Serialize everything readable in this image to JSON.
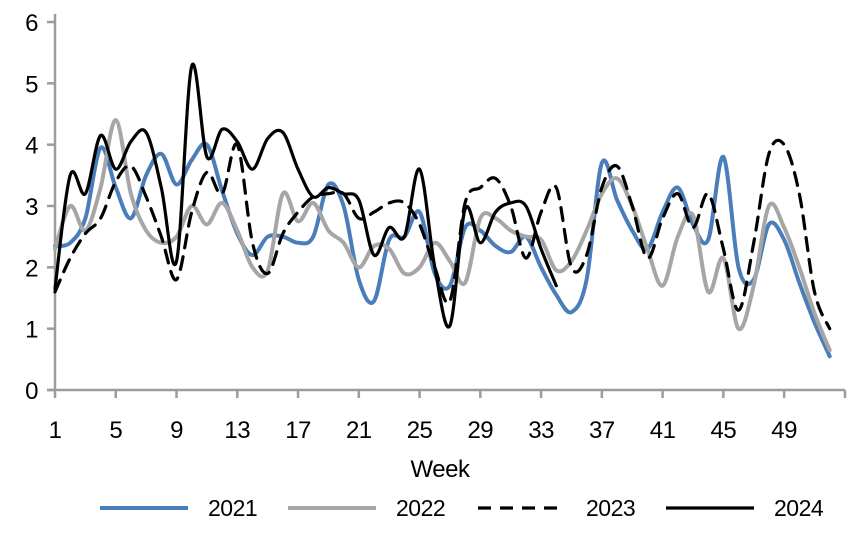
{
  "chart_data": {
    "type": "line",
    "title": "",
    "xlabel": "Week",
    "ylabel": "",
    "x_range": [
      1,
      52
    ],
    "ylim": [
      0,
      6
    ],
    "y_ticks": [
      0,
      1,
      2,
      3,
      4,
      5,
      6
    ],
    "x_tick_labels": [
      1,
      5,
      9,
      13,
      17,
      21,
      25,
      29,
      33,
      37,
      41,
      45,
      49
    ],
    "grid": false,
    "legend_position": "bottom",
    "axis_color": "#9c9c9c",
    "line_smoothing": true,
    "series": [
      {
        "name": "2021",
        "color": "#4a7ebb",
        "line_style": "solid",
        "weeks_start": 1,
        "values": [
          2.35,
          2.4,
          2.8,
          3.95,
          3.3,
          2.8,
          3.5,
          3.85,
          3.35,
          3.75,
          4.0,
          3.25,
          2.55,
          2.2,
          2.5,
          2.5,
          2.4,
          2.5,
          3.35,
          3.0,
          1.8,
          1.45,
          2.45,
          2.5,
          2.9,
          1.9,
          1.7,
          2.65,
          2.6,
          2.35,
          2.25,
          2.5,
          2.0,
          1.55,
          1.27,
          1.8,
          3.7,
          3.1,
          2.6,
          2.3,
          2.9,
          3.3,
          2.7,
          2.45,
          3.8,
          2.0,
          1.8,
          2.7,
          2.45,
          1.75,
          1.1,
          0.55
        ]
      },
      {
        "name": "2022",
        "color": "#a6a6a6",
        "line_style": "solid",
        "weeks_start": 1,
        "values": [
          2.3,
          3.0,
          2.6,
          3.3,
          4.4,
          3.2,
          2.6,
          2.4,
          2.5,
          3.0,
          2.7,
          3.05,
          2.6,
          2.0,
          1.95,
          3.2,
          2.75,
          3.05,
          2.6,
          2.4,
          2.0,
          2.35,
          2.3,
          1.9,
          2.0,
          2.4,
          2.1,
          1.75,
          2.8,
          2.8,
          2.6,
          2.5,
          2.45,
          1.95,
          2.1,
          2.6,
          3.2,
          3.45,
          3.0,
          2.3,
          1.7,
          2.5,
          2.85,
          1.6,
          2.15,
          1.0,
          1.7,
          3.0,
          2.65,
          2.0,
          1.25,
          0.65
        ]
      },
      {
        "name": "2023",
        "color": "#000000",
        "line_style": "dashed",
        "weeks_start": 1,
        "values": [
          1.6,
          2.15,
          2.55,
          2.8,
          3.4,
          3.65,
          3.15,
          2.5,
          1.8,
          2.9,
          3.55,
          3.2,
          4.0,
          2.4,
          1.9,
          2.55,
          2.9,
          3.15,
          3.2,
          3.2,
          2.8,
          2.9,
          3.05,
          3.05,
          2.7,
          2.0,
          1.45,
          3.05,
          3.3,
          3.45,
          3.0,
          2.15,
          2.9,
          3.3,
          2.0,
          2.2,
          3.3,
          3.65,
          3.0,
          2.15,
          2.8,
          3.2,
          2.65,
          3.2,
          2.3,
          1.3,
          2.4,
          3.85,
          4.0,
          3.2,
          1.6,
          1.0
        ]
      },
      {
        "name": "2024",
        "color": "#000000",
        "line_style": "solid",
        "weeks_start": 1,
        "values": [
          1.65,
          3.5,
          3.2,
          4.15,
          3.6,
          4.05,
          4.2,
          3.3,
          2.1,
          5.28,
          3.8,
          4.25,
          4.05,
          3.6,
          4.1,
          4.2,
          3.6,
          3.15,
          3.3,
          3.2,
          3.1,
          2.2,
          2.65,
          2.5,
          3.6,
          2.0,
          1.05,
          2.95,
          2.4,
          2.9,
          3.05,
          3.0,
          2.3,
          1.7
        ]
      }
    ]
  }
}
